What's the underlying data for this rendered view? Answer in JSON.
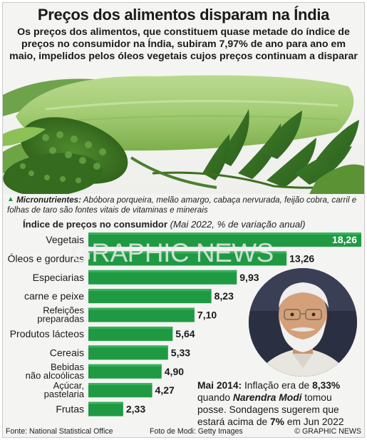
{
  "title": "Preços dos alimentos disparam na Índia",
  "subtitle": "Os preços dos alimentos, que constituem quase metade do índice de preços no consumidor na Índia, subiram 7,97% de ano para ano em maio, impelidos pelos óleos vegetais cujos preços continuam a disparar",
  "note": {
    "label": "Micronutrientes:",
    "text": " Abóbora porqueira, melão amargo, cabaça nervurada, feijão cobra, carril e folhas de taro são fontes vitais de vitaminas e minerais"
  },
  "chart_heading": {
    "bold": "Índice de preços no consumidor",
    "rest": " (Mai 2022, % de variação anual)"
  },
  "watermark": "GRAPHIC NEWS",
  "callout": {
    "p1": "Mai 2014:",
    "p2": " Inflação era de ",
    "p3": "8,33%",
    "p4": " quando ",
    "p5": "Narendra Modi",
    "p6": " tomou posse. Sondagens sugerem que estará acima de ",
    "p7": "7%",
    "p8": " em Jun 2022"
  },
  "footer": {
    "source": "Fonte: National Statistical Office",
    "photo": "Foto de Modi: Getty Images",
    "copyright": "© GRAPHIC NEWS"
  },
  "colors": {
    "bar": "#1f9a43",
    "bar_light": "#35b25a",
    "accent": "#1f8f3c"
  },
  "chart_data": {
    "type": "bar",
    "orientation": "horizontal",
    "categories": [
      "Vegetais",
      "Óleos e gorduras",
      "Especiarias",
      "carne e peixe",
      "Refeições preparadas",
      "Produtos lácteos",
      "Cereais",
      "Bebidas não alcoólicas",
      "Açúcar, pastelaria",
      "Frutas"
    ],
    "category_lines": [
      [
        "Vegetais"
      ],
      [
        "Óleos e gorduras"
      ],
      [
        "Especiarias"
      ],
      [
        "carne e peixe"
      ],
      [
        "Refeições",
        "preparadas"
      ],
      [
        "Produtos lácteos"
      ],
      [
        "Cereais"
      ],
      [
        "Bebidas",
        "não alcoólicas"
      ],
      [
        "Açúcar,",
        "pastelaria"
      ],
      [
        "Frutas"
      ]
    ],
    "values": [
      18.26,
      13.26,
      9.93,
      8.23,
      7.1,
      5.64,
      5.33,
      4.9,
      4.27,
      2.33
    ],
    "value_labels": [
      "18,26",
      "13,26",
      "9,93",
      "8,23",
      "7,10",
      "5,64",
      "5,33",
      "4,90",
      "4,27",
      "2,33"
    ],
    "title": "Índice de preços no consumidor",
    "subtitle": "(Mai 2022, % de variação anual)",
    "xlim": [
      0,
      18.26
    ],
    "grid": false,
    "legend": "none"
  }
}
